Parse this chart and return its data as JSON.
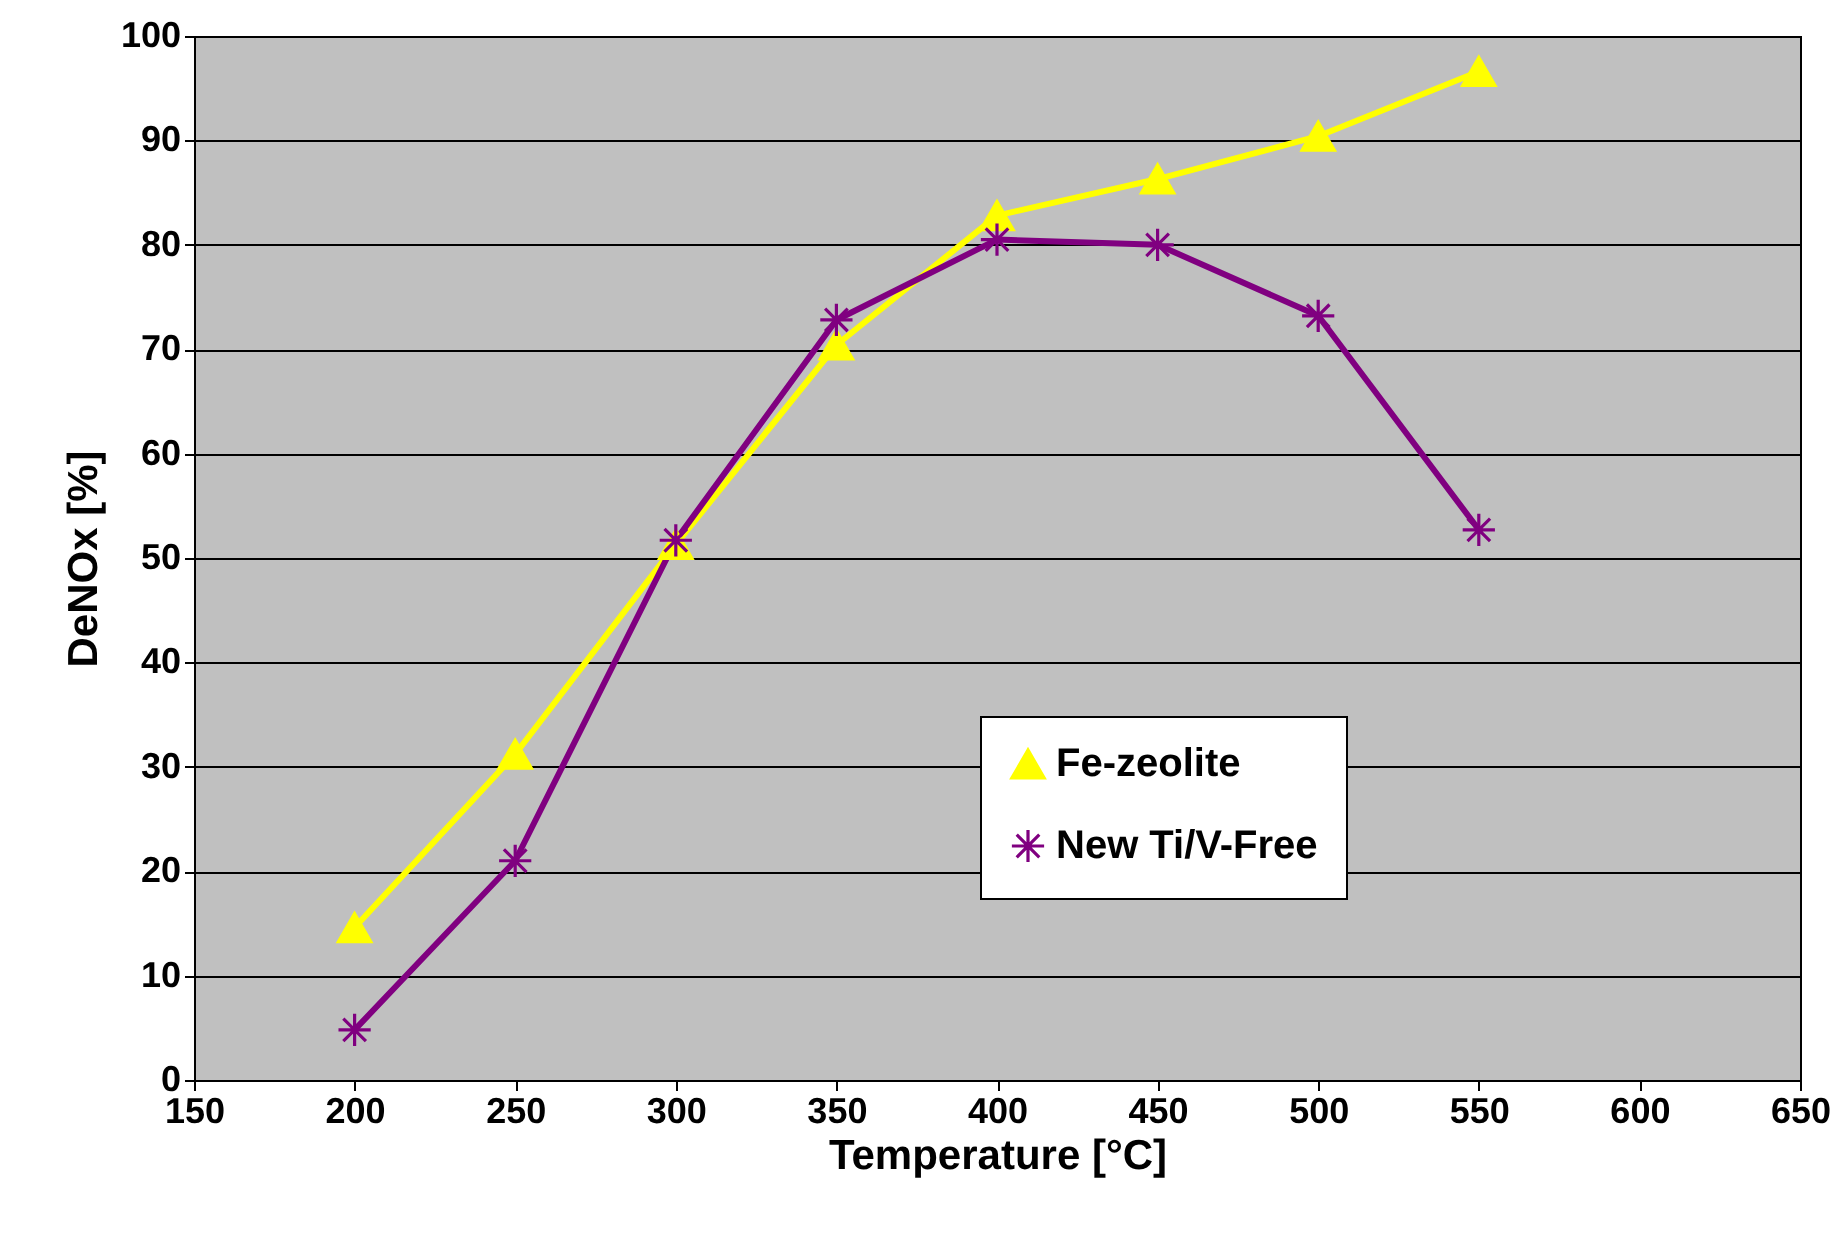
{
  "chart_data": {
    "type": "line",
    "xlabel": "Temperature [°C]",
    "ylabel": "DeNOx [%]",
    "x": [
      200,
      250,
      300,
      350,
      400,
      450,
      500,
      550
    ],
    "series": [
      {
        "name": "Fe-zeolite",
        "color": "#ffff00",
        "marker": "triangle",
        "values": [
          14.6,
          31.2,
          51.3,
          70.4,
          82.8,
          86.3,
          90.4,
          96.6
        ]
      },
      {
        "name": "New Ti/V-Free",
        "color": "#800080",
        "marker": "cross",
        "values": [
          4.8,
          21,
          51.7,
          72.8,
          80.5,
          80,
          73.2,
          52.7
        ]
      }
    ],
    "xlim": [
      150,
      650
    ],
    "xticks": [
      150,
      200,
      250,
      300,
      350,
      400,
      450,
      500,
      550,
      600,
      650
    ],
    "ylim": [
      0,
      100
    ],
    "yticks": [
      0,
      10,
      20,
      30,
      40,
      50,
      60,
      70,
      80,
      90,
      100
    ],
    "grid": "y",
    "legend": "bottom right"
  }
}
